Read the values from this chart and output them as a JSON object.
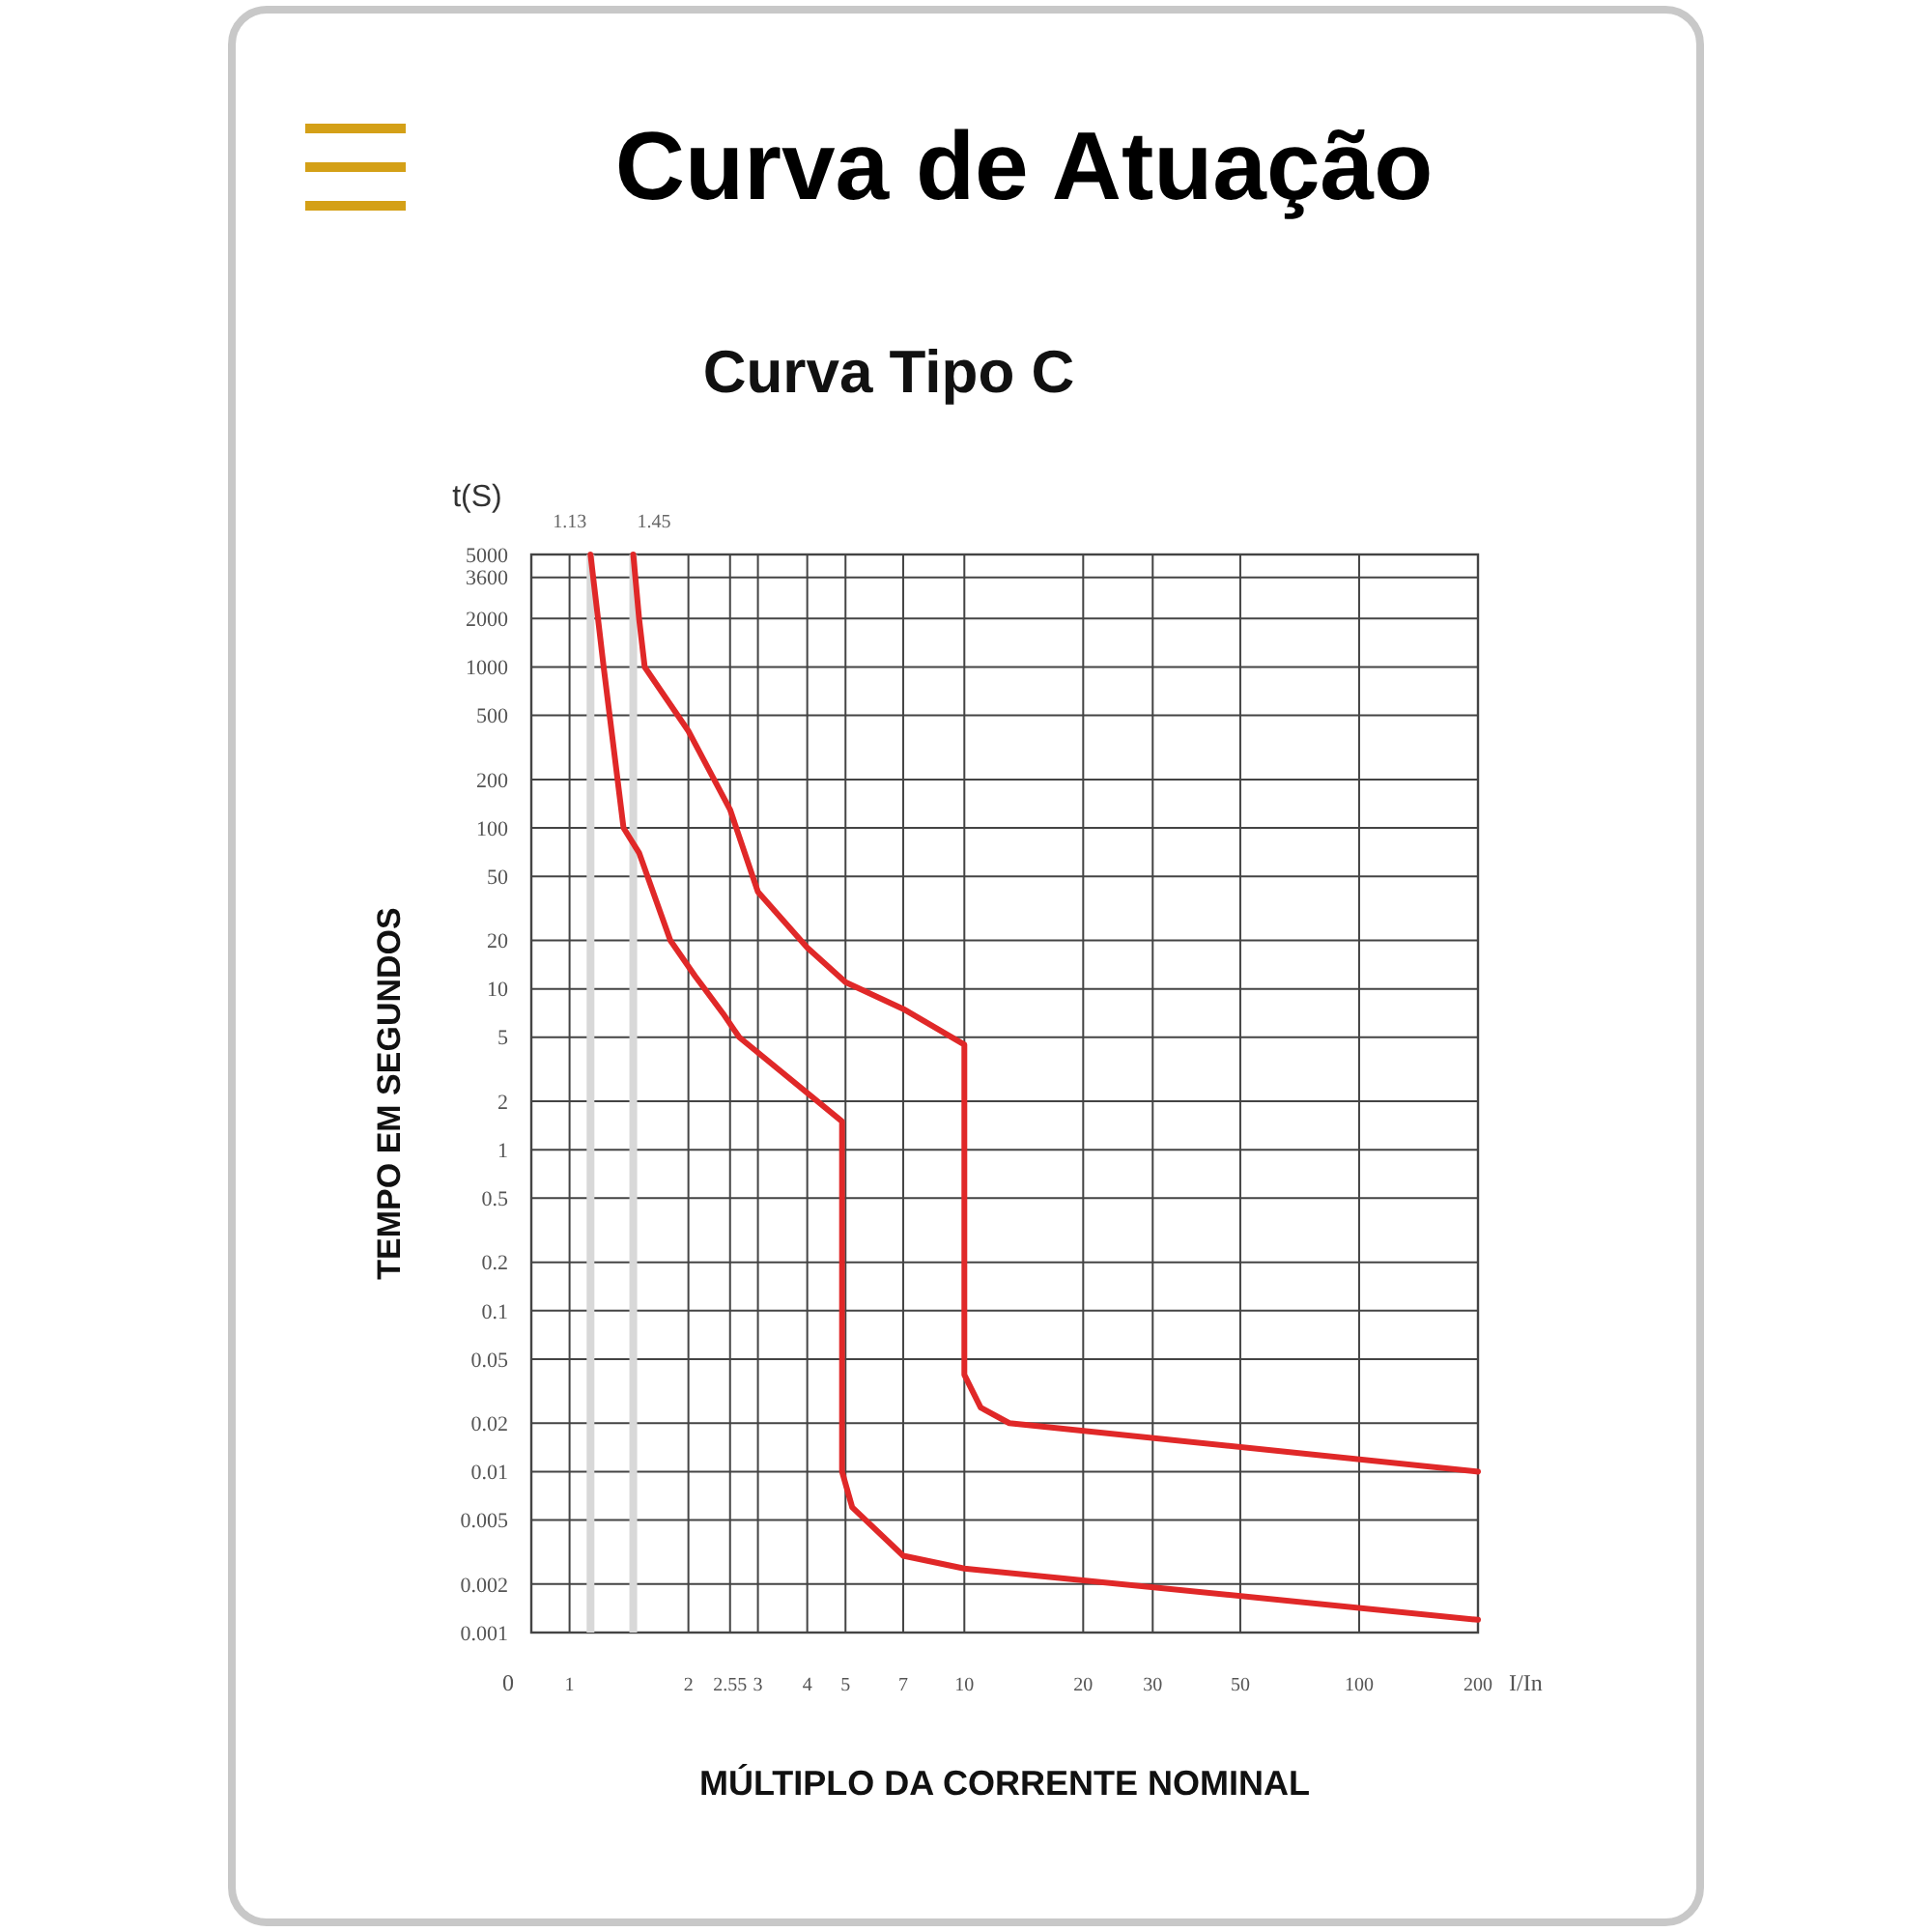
{
  "chart_data": {
    "type": "line",
    "title": "Curva de Atuação",
    "subtitle": "Curva Tipo C",
    "xlabel": "MÚLTIPLO DA CORRENTE NOMINAL",
    "ylabel": "TEMPO EM SEGUNDOS",
    "annotations": [
      "t(S)",
      "I/In",
      "0"
    ],
    "log": "xy",
    "xlim": [
      0.8,
      200
    ],
    "xticks": [
      1,
      2,
      2.55,
      3,
      4,
      5,
      7,
      10,
      20,
      30,
      50,
      100,
      200
    ],
    "ylim": [
      0.001,
      5000
    ],
    "yticks": [
      0.001,
      0.002,
      0.005,
      0.01,
      0.02,
      0.05,
      0.1,
      0.2,
      0.5,
      1,
      2,
      5,
      10,
      20,
      50,
      100,
      200,
      500,
      1000,
      2000,
      3600,
      5000
    ],
    "grid": true,
    "marker": "none",
    "line_style": "solid",
    "ref_lines": [
      {
        "axis": "x",
        "value": 1.13,
        "label": "1.13",
        "color": "#d8d8d8"
      },
      {
        "axis": "x",
        "value": 1.45,
        "label": "1.45",
        "color": "#d8d8d8"
      }
    ],
    "series": [
      {
        "color": "#e02828",
        "x": [
          1.13,
          1.22,
          1.37,
          1.5,
          1.8,
          2.08,
          2.45,
          2.69,
          4.9,
          4.9,
          5.2,
          7,
          10,
          200
        ],
        "values": [
          5000,
          1000,
          100,
          70,
          20,
          12,
          7,
          5,
          1.5,
          0.01,
          0.006,
          0.003,
          0.0025,
          0.0012
        ]
      },
      {
        "color": "#e02828",
        "x": [
          1.45,
          1.5,
          1.55,
          2,
          2.55,
          3,
          4,
          5,
          7,
          10,
          10,
          11,
          13,
          200
        ],
        "values": [
          5000,
          2000,
          1000,
          400,
          130,
          40,
          18,
          11,
          7.5,
          4.5,
          0.04,
          0.025,
          0.02,
          0.01
        ]
      }
    ]
  }
}
